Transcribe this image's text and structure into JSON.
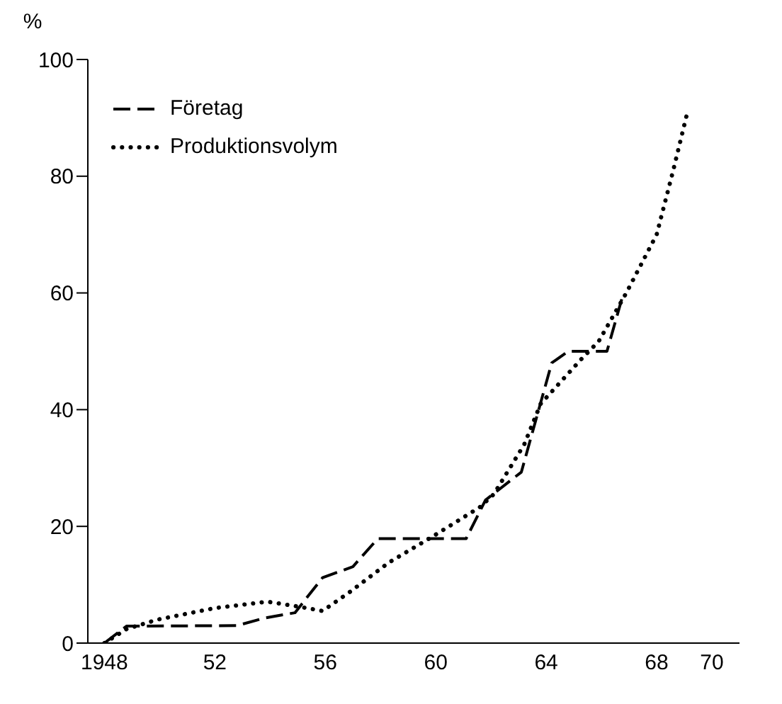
{
  "chart_data": {
    "type": "line",
    "ylabel": "%",
    "xlim": [
      1947.4,
      1971
    ],
    "ylim": [
      0,
      100
    ],
    "xticks": [
      1948,
      {
        "value": 1952,
        "label": "52"
      },
      {
        "value": 1956,
        "label": "56"
      },
      {
        "value": 1960,
        "label": "60"
      },
      {
        "value": 1964,
        "label": "64"
      },
      {
        "value": 1968,
        "label": "68"
      },
      {
        "value": 1970,
        "label": "70"
      }
    ],
    "yticks": [
      0,
      20,
      40,
      60,
      80,
      100
    ],
    "legend": "top left",
    "marker": "none",
    "series": [
      {
        "name": "Företag",
        "color": "#000000",
        "line_style": "dashed",
        "x": [
          1948,
          1948.8,
          1952.8,
          1953.8,
          1954.9,
          1955.9,
          1957,
          1957.9,
          1961.1,
          1961.8,
          1963.1,
          1964.2,
          1964.8,
          1965.4,
          1966.2,
          1966.8
        ],
        "values": [
          0,
          2.9,
          3,
          4.3,
          5.2,
          11.2,
          13.1,
          17.9,
          17.9,
          24.5,
          29.3,
          48,
          50,
          50,
          50,
          60
        ]
      },
      {
        "name": "Produktionsvolym",
        "color": "#000000",
        "line_style": "dotted",
        "x": [
          1948,
          1948.8,
          1949.9,
          1952,
          1953.9,
          1955.1,
          1955.9,
          1956.9,
          1958.3,
          1959.9,
          1961.6,
          1962.1,
          1963.2,
          1963.8,
          1965.3,
          1965.9,
          1966.9,
          1968,
          1968.6,
          1969.1
        ],
        "values": [
          0,
          2.4,
          4,
          6,
          7.1,
          6.2,
          5.5,
          8.8,
          13.8,
          18.3,
          23.3,
          25.5,
          34,
          41,
          48.8,
          51.7,
          60,
          70,
          81,
          90.7
        ]
      }
    ]
  }
}
